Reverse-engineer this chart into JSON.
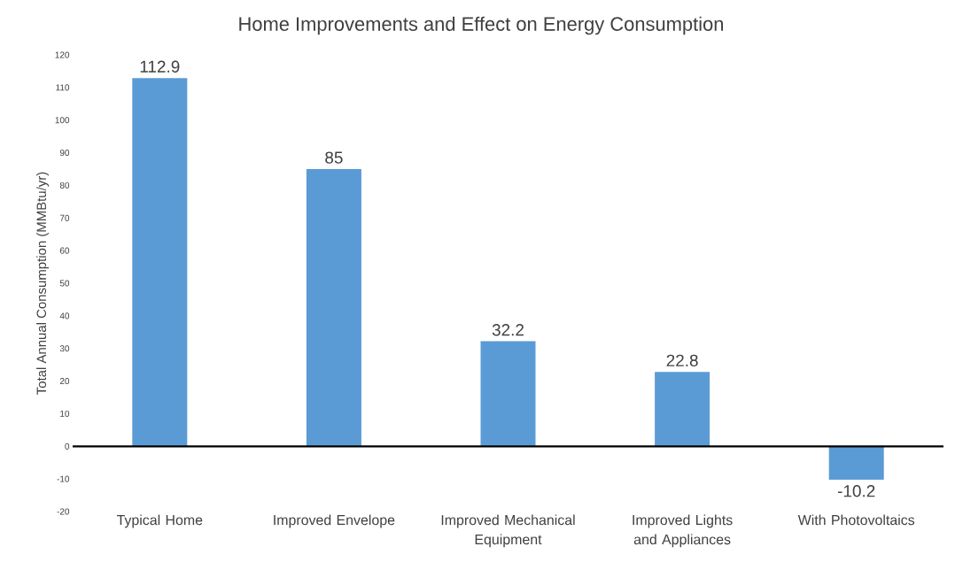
{
  "chart_data": {
    "type": "bar",
    "title": "Home Improvements and Effect on Energy Consumption",
    "ylabel": "Total Annual Consumption (MMBtu/yr)",
    "categories": [
      "Typical Home",
      "Improved Envelope",
      "Improved Mechanical Equipment",
      "Improved Lights and Appliances",
      "With Photovoltaics"
    ],
    "values": [
      112.9,
      85,
      32.2,
      22.8,
      -10.2
    ],
    "color": "#5b9bd5",
    "ylim": [
      -20,
      120
    ],
    "yticks": [
      -20,
      -10,
      0,
      10,
      20,
      30,
      40,
      50,
      60,
      70,
      80,
      90,
      100,
      110,
      120
    ],
    "ref_lines": [
      {
        "axis": "y",
        "value": 0,
        "color": "#000000"
      }
    ],
    "data_labels": true
  }
}
